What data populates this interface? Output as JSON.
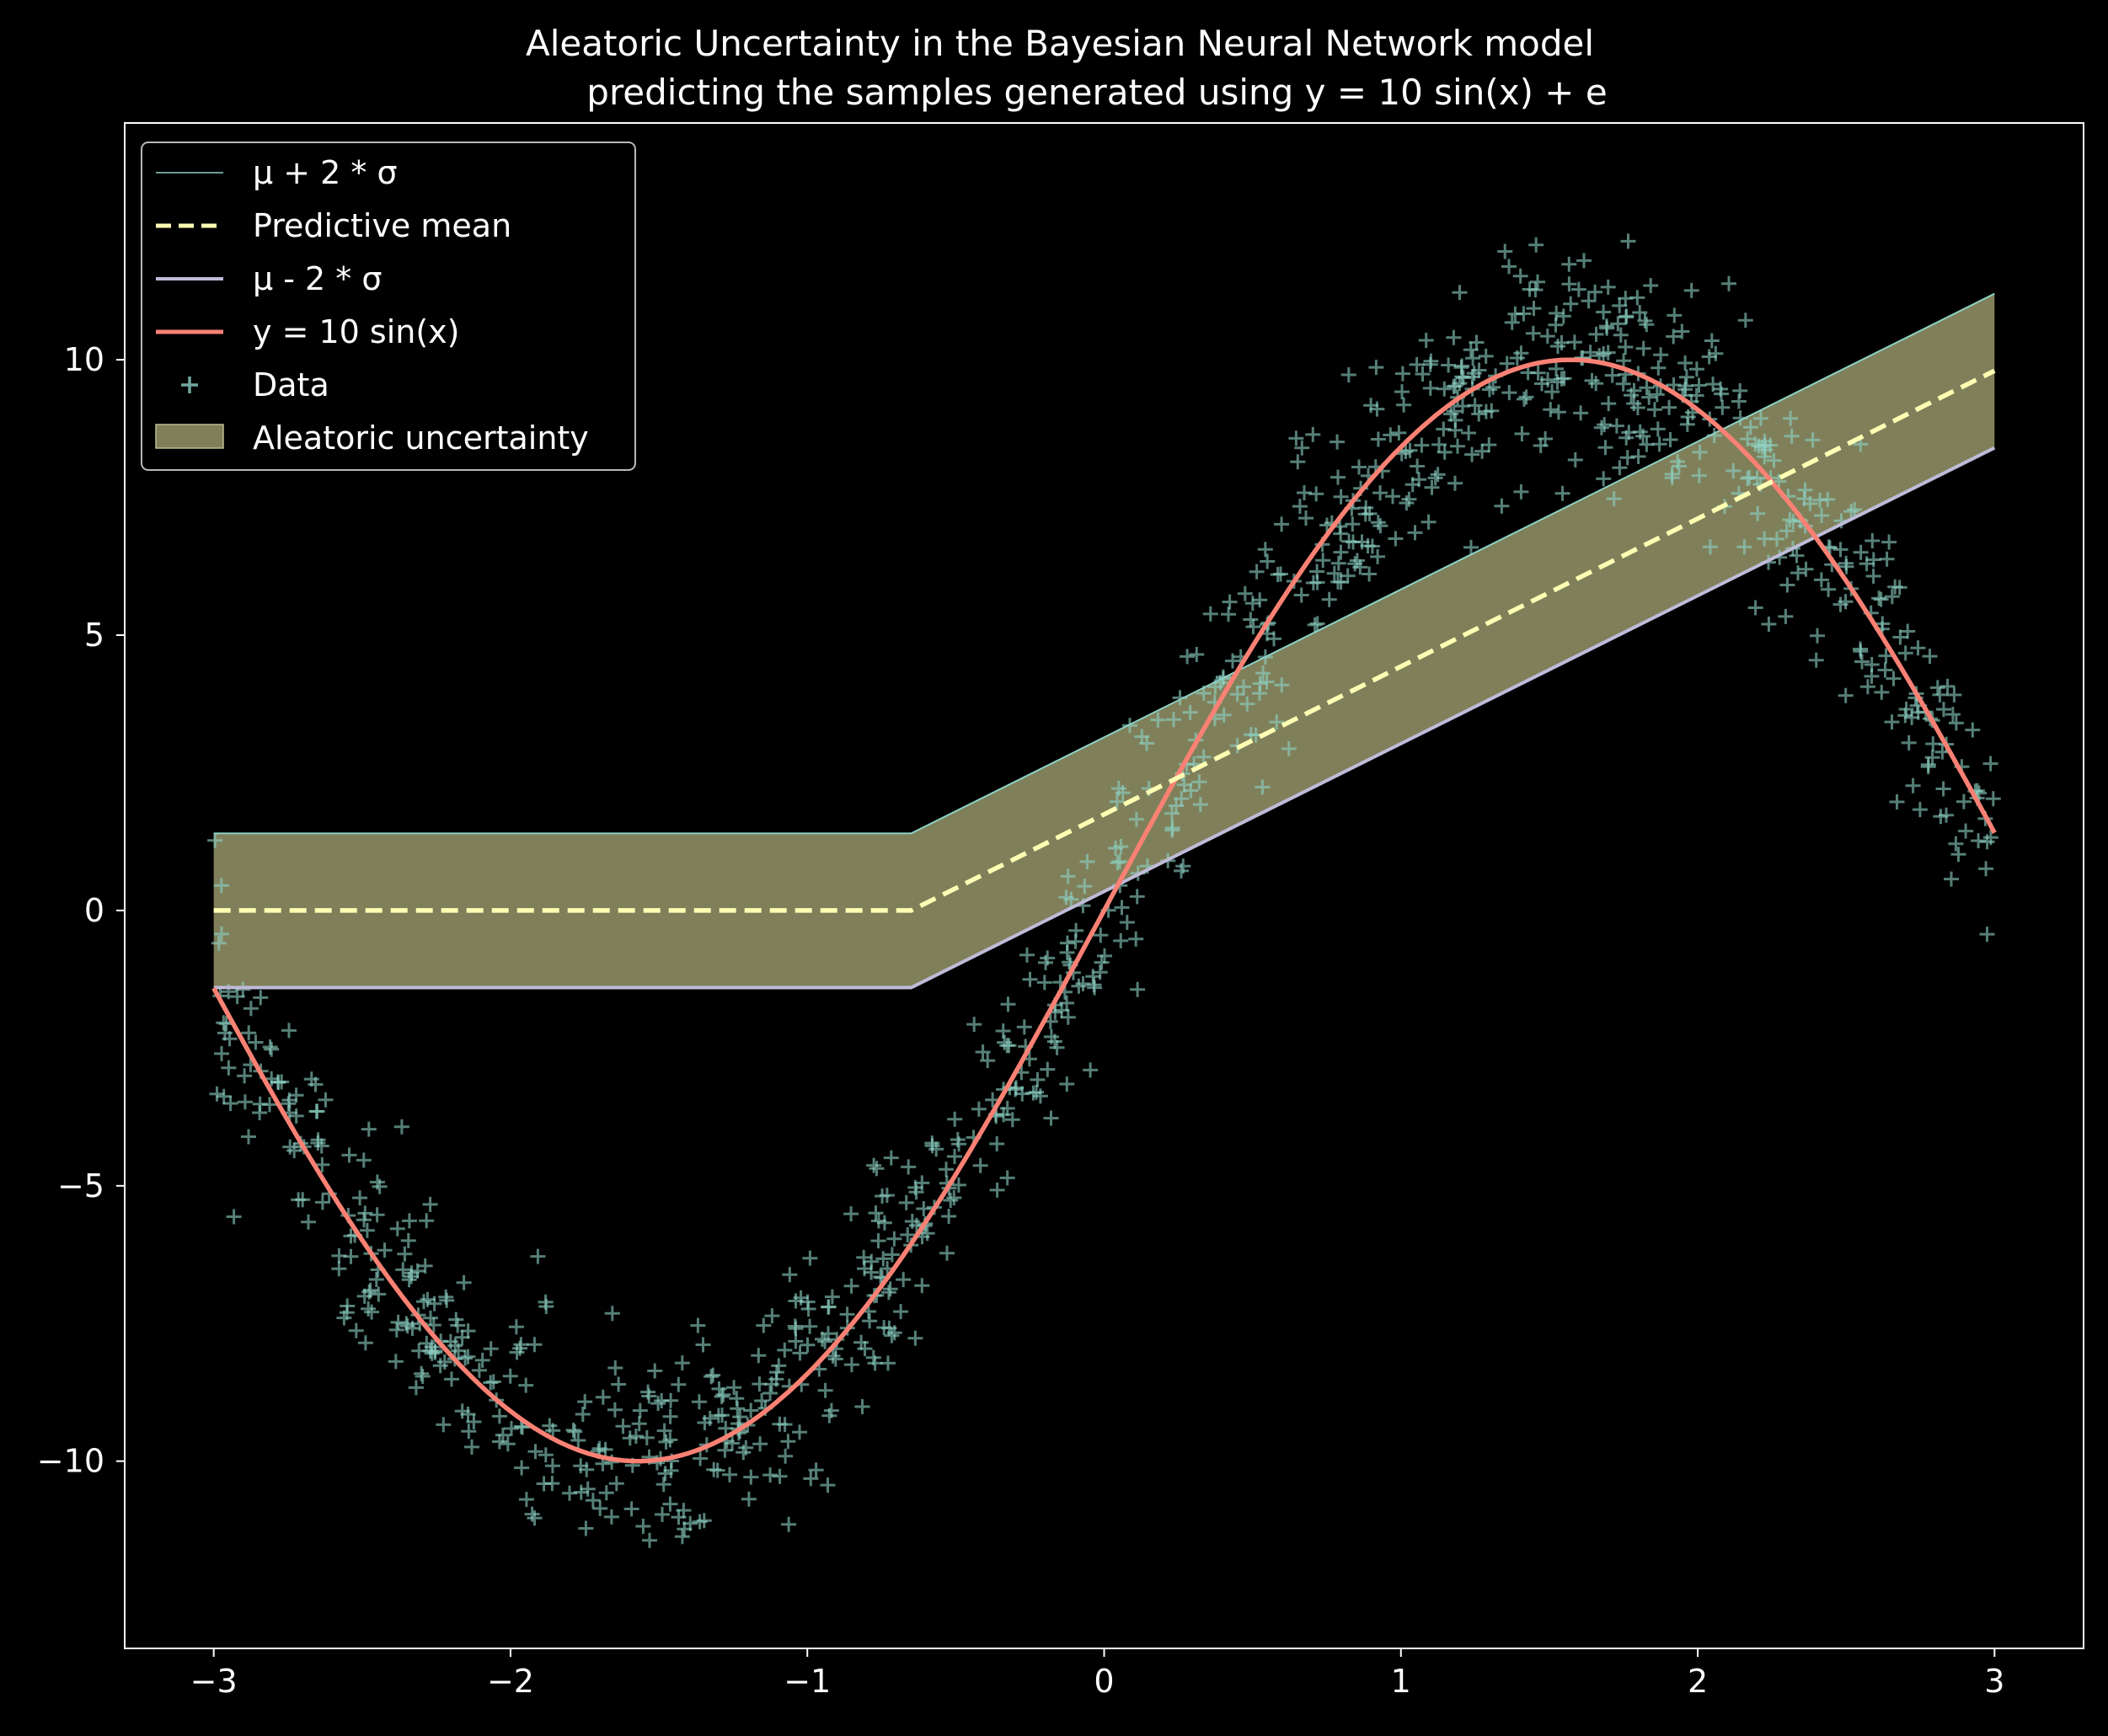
{
  "chart_data": {
    "type": "line",
    "title_line1": "Aleatoric Uncertainty in the Bayesian Neural Network model",
    "title_line2": "predicting the samples generated using y = 10 sin(x) + e",
    "xlabel": "",
    "ylabel": "",
    "xlim": [
      -3.3,
      3.3
    ],
    "ylim": [
      -13.4,
      14.3
    ],
    "xticks": [
      -3,
      -2,
      -1,
      0,
      1,
      2,
      3
    ],
    "xtick_labels": [
      "−3",
      "−2",
      "−1",
      "0",
      "1",
      "2",
      "3"
    ],
    "yticks": [
      -10,
      -5,
      0,
      5,
      10
    ],
    "ytick_labels": [
      "−10",
      "−5",
      "0",
      "5",
      "10"
    ],
    "grid": false,
    "legend_position": "top-left",
    "background": "#000000",
    "legend": [
      {
        "label": "μ + 2 * σ",
        "kind": "thin-line",
        "color": "#8dd3c7"
      },
      {
        "label": "Predictive mean",
        "kind": "dashed-line",
        "color": "#feffb3"
      },
      {
        "label": "μ - 2 * σ",
        "kind": "line",
        "color": "#bfbbd9"
      },
      {
        "label": "y = 10 sin(x)",
        "kind": "line",
        "color": "#fa8174"
      },
      {
        "label": "Data",
        "kind": "marker",
        "color": "#8dd3c7"
      },
      {
        "label": "Aleatoric uncertainty",
        "kind": "patch",
        "color": "#feffb3"
      }
    ],
    "series": {
      "upper": {
        "x": [
          -3.0,
          -0.65,
          3.0
        ],
        "y": [
          1.4,
          1.4,
          11.2
        ],
        "color": "#8dd3c7"
      },
      "mean": {
        "x": [
          -3.0,
          -0.65,
          3.0
        ],
        "y": [
          0.0,
          0.0,
          9.8
        ],
        "color": "#feffb3"
      },
      "lower": {
        "x": [
          -3.0,
          -0.65,
          3.0
        ],
        "y": [
          -1.4,
          -1.4,
          8.4
        ],
        "color": "#bfbbd9"
      },
      "true_function": {
        "formula": "10*sin(x)",
        "x_range": [
          -3.0,
          3.0
        ],
        "color": "#fa8174"
      },
      "band": {
        "color": "#feffb3",
        "opacity": 0.5
      },
      "data": {
        "formula": "10*sin(x) + e",
        "n": 1000,
        "x_range": [
          -3.0,
          3.0
        ],
        "noise_std": 1.0,
        "marker": "+",
        "color": "#8dd3c7",
        "opacity": 0.6
      }
    }
  }
}
